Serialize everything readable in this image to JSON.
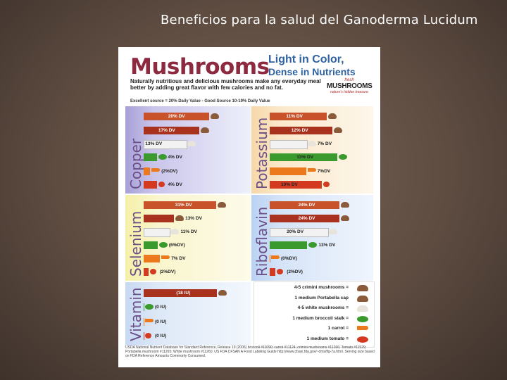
{
  "slide": {
    "title": "Beneficios para la salud del Ganoderma Lucidum"
  },
  "poster": {
    "title": "Mushrooms",
    "tagline_line1": "Light in Color,",
    "tagline_line2": "Dense in Nutrients",
    "intro": "Naturally nutritious and delicious mushrooms make any everyday meal better by adding great flavor with few calories and no fat.",
    "source_note": "Excellent source = 20% Daily Value - Good Source 10-19% Daily Value",
    "logo_line1": "fresh",
    "logo_line2": "MUSHROOMS",
    "logo_line3": "nature's hidden treasure",
    "legend": [
      "4-5 crimini mushrooms =",
      "1 medium Portabella cap",
      "4-5 white mushrooms =",
      "1 medium broccoli stalk =",
      "1 carrot =",
      "1 medium tomato ="
    ],
    "footnote": "USDA National Nutrient Database for Standard Reference, Release 19 (2006) broccoli #11090; carrot #11124; crimini mushrooms #11266; Tomato #11529; Portabella mushroom #11265; White mushroom #11260. US FDA CFSAN A Food Labeling Guide http://www.cfsan.fda.gov/~dms/flg-7a.html. Serving size based on FDA Reference Amounts Commonly Consumed."
  },
  "colors": {
    "crimini": "#c8522a",
    "portabella": "#a8321e",
    "white": "#f2f2f2",
    "broccoli": "#3b9a2e",
    "carrot": "#ec7a1c",
    "tomato": "#d43a20"
  },
  "chart_data": [
    {
      "type": "bar",
      "title": "Copper",
      "categories": [
        "crimini",
        "portabella",
        "white",
        "broccoli",
        "carrot",
        "tomato"
      ],
      "values": [
        20,
        17,
        13,
        4,
        2,
        4
      ],
      "labels": [
        "20% DV",
        "17% DV",
        "13% DV",
        "4% DV",
        "(2%DV)",
        "4% DV"
      ],
      "xlim": [
        0,
        25
      ]
    },
    {
      "type": "bar",
      "title": "Potassium",
      "categories": [
        "crimini",
        "portabella",
        "white",
        "broccoli",
        "carrot",
        "tomato"
      ],
      "values": [
        11,
        12,
        7,
        13,
        7,
        10
      ],
      "labels": [
        "11% DV",
        "12% DV",
        "7% DV",
        "13% DV",
        "7%DV",
        "10% DV"
      ],
      "xlim": [
        0,
        15
      ]
    },
    {
      "type": "bar",
      "title": "Selenium",
      "categories": [
        "crimini",
        "portabella",
        "white",
        "broccoli",
        "carrot",
        "tomato"
      ],
      "values": [
        31,
        13,
        11,
        6,
        7,
        2
      ],
      "labels": [
        "31% DV",
        "13% DV",
        "11% DV",
        "(6%DV)",
        "7% DV",
        "(2%DV)"
      ],
      "xlim": [
        0,
        35
      ]
    },
    {
      "type": "bar",
      "title": "Riboflavin",
      "categories": [
        "crimini",
        "portabella",
        "white",
        "broccoli",
        "carrot",
        "tomato"
      ],
      "values": [
        24,
        24,
        20,
        13,
        0,
        2
      ],
      "labels": [
        "24% DV",
        "24% DV",
        "20% DV",
        "13% DV",
        "(0%DV)",
        "(2%DV)"
      ],
      "xlim": [
        0,
        27
      ]
    },
    {
      "type": "bar",
      "title": "Vitamin D",
      "categories": [
        "portabella",
        "broccoli",
        "carrot",
        "tomato"
      ],
      "values": [
        18,
        0,
        0,
        0
      ],
      "labels": [
        "(18 IU)",
        "(0 IU)",
        "(0 IU)",
        "(0 IU)"
      ],
      "xlim": [
        0,
        20
      ]
    }
  ]
}
